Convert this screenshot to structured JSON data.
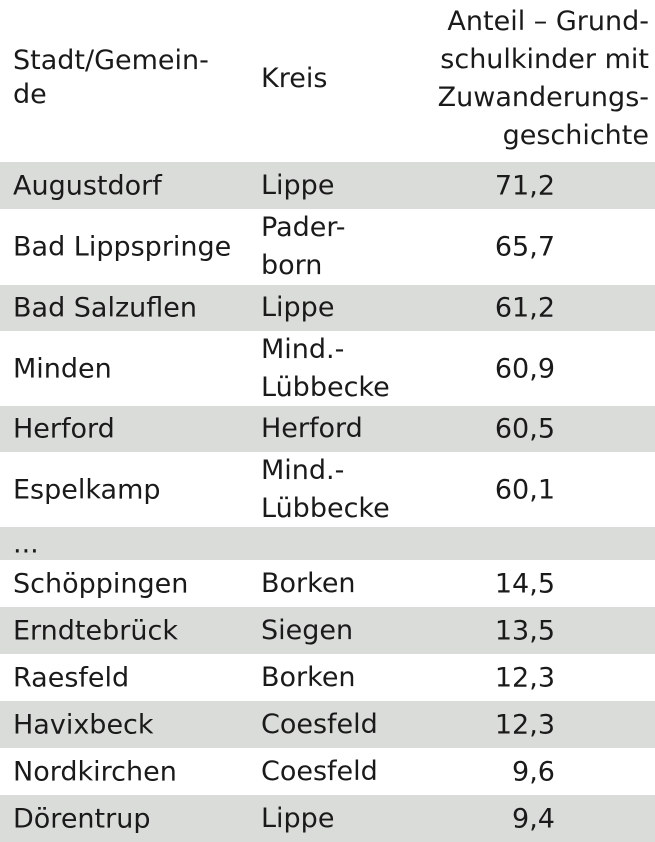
{
  "header": {
    "city_lines": [
      "Stadt/Gemein-",
      "de"
    ],
    "kreis": "Kreis",
    "anteil_lines": [
      "Anteil – Grund-",
      "schulkinder mit",
      "Zuwanderungs-",
      "geschichte"
    ]
  },
  "rows": [
    {
      "city": "Augustdorf",
      "kreis": [
        "Lippe"
      ],
      "value": "71,2"
    },
    {
      "city": "Bad Lippspringe",
      "kreis": [
        "Pader-",
        "born"
      ],
      "value": "65,7"
    },
    {
      "city": "Bad Salzuflen",
      "kreis": [
        "Lippe"
      ],
      "value": "61,2"
    },
    {
      "city": "Minden",
      "kreis": [
        "Mind.-",
        "Lübbecke"
      ],
      "value": "60,9"
    },
    {
      "city": "Herford",
      "kreis": [
        "Herford"
      ],
      "value": "60,5"
    },
    {
      "city": "Espelkamp",
      "kreis": [
        "Mind.-",
        "Lübbecke"
      ],
      "value": "60,1"
    },
    {
      "city": "...",
      "kreis": [
        ""
      ],
      "value": ""
    },
    {
      "city": "Schöppingen",
      "kreis": [
        "Borken"
      ],
      "value": "14,5"
    },
    {
      "city": "Erndtebrück",
      "kreis": [
        "Siegen"
      ],
      "value": "13,5"
    },
    {
      "city": "Raesfeld",
      "kreis": [
        "Borken"
      ],
      "value": "12,3"
    },
    {
      "city": "Havixbeck",
      "kreis": [
        "Coesfeld"
      ],
      "value": "12,3"
    },
    {
      "city": "Nordkirchen",
      "kreis": [
        "Coesfeld"
      ],
      "value": "9,6"
    },
    {
      "city": "Dörentrup",
      "kreis": [
        "Lippe"
      ],
      "value": "9,4"
    }
  ]
}
